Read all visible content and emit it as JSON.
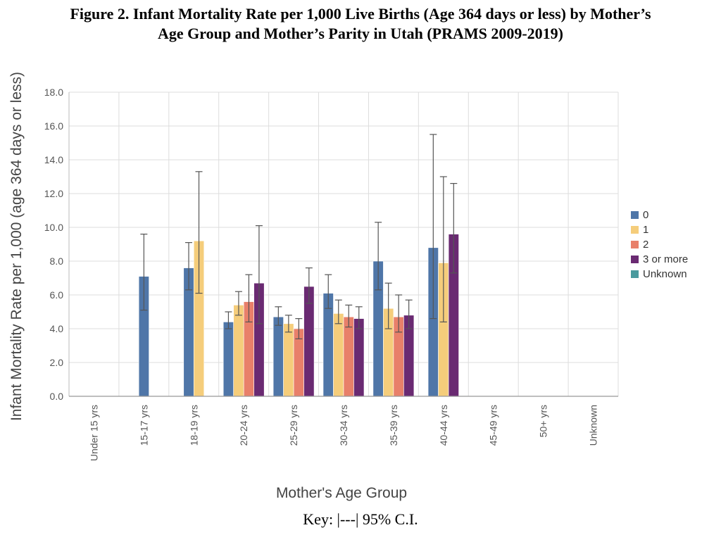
{
  "title_line1": "Figure 2. Infant Mortality Rate per 1,000 Live Births (Age 364 days or less) by Mother’s",
  "title_line2": "Age Group and Mother’s Parity in Utah (PRAMS 2009-2019)",
  "key_text": "Key: |---| 95% C.I.",
  "chart_data": {
    "type": "bar",
    "xlabel": "Mother's Age Group",
    "ylabel": "Infant Mortality Rate per 1,000 (age 364 days or less)",
    "ylim": [
      0,
      18
    ],
    "yticks": [
      "0.0",
      "2.0",
      "4.0",
      "6.0",
      "8.0",
      "10.0",
      "12.0",
      "14.0",
      "16.0",
      "18.0"
    ],
    "grid": true,
    "legend_position": "right",
    "categories": [
      "Under 15 yrs",
      "15-17 yrs",
      "18-19 yrs",
      "20-24 yrs",
      "25-29 yrs",
      "30-34 yrs",
      "35-39 yrs",
      "40-44 yrs",
      "45-49 yrs",
      "50+ yrs",
      "Unknown"
    ],
    "series": [
      {
        "name": "0",
        "color": "#4f76a8",
        "values": [
          null,
          7.1,
          7.6,
          4.4,
          4.7,
          6.1,
          8.0,
          8.8,
          null,
          null,
          null
        ],
        "ci_low": [
          null,
          5.1,
          6.3,
          4.0,
          4.2,
          5.2,
          6.3,
          4.6,
          null,
          null,
          null
        ],
        "ci_high": [
          null,
          9.6,
          9.1,
          5.0,
          5.3,
          7.2,
          10.3,
          15.5,
          null,
          null,
          null
        ]
      },
      {
        "name": "1",
        "color": "#f5cd7b",
        "values": [
          null,
          null,
          9.2,
          5.4,
          4.3,
          4.9,
          5.2,
          7.9,
          null,
          null,
          null
        ],
        "ci_low": [
          null,
          null,
          6.1,
          4.8,
          3.8,
          4.3,
          4.0,
          4.4,
          null,
          null,
          null
        ],
        "ci_high": [
          null,
          null,
          13.3,
          6.2,
          4.8,
          5.7,
          6.7,
          13.0,
          null,
          null,
          null
        ]
      },
      {
        "name": "2",
        "color": "#e8806a",
        "values": [
          null,
          null,
          null,
          5.6,
          4.0,
          4.7,
          4.7,
          null,
          null,
          null,
          null
        ],
        "ci_low": [
          null,
          null,
          null,
          4.4,
          3.4,
          4.1,
          3.8,
          null,
          null,
          null,
          null
        ],
        "ci_high": [
          null,
          null,
          null,
          7.2,
          4.6,
          5.4,
          6.0,
          null,
          null,
          null,
          null
        ]
      },
      {
        "name": "3 or more",
        "color": "#6a2a72",
        "values": [
          null,
          null,
          null,
          6.7,
          6.5,
          4.6,
          4.8,
          9.6,
          null,
          null,
          null
        ],
        "ci_low": [
          null,
          null,
          null,
          4.3,
          5.5,
          4.0,
          4.0,
          7.3,
          null,
          null,
          null
        ],
        "ci_high": [
          null,
          null,
          null,
          10.1,
          7.6,
          5.3,
          5.7,
          12.6,
          null,
          null,
          null
        ]
      },
      {
        "name": "Unknown",
        "color": "#4a9a9e",
        "values": [
          null,
          null,
          null,
          null,
          null,
          null,
          null,
          null,
          null,
          null,
          null
        ],
        "ci_low": [
          null,
          null,
          null,
          null,
          null,
          null,
          null,
          null,
          null,
          null,
          null
        ],
        "ci_high": [
          null,
          null,
          null,
          null,
          null,
          null,
          null,
          null,
          null,
          null,
          null
        ]
      }
    ]
  }
}
